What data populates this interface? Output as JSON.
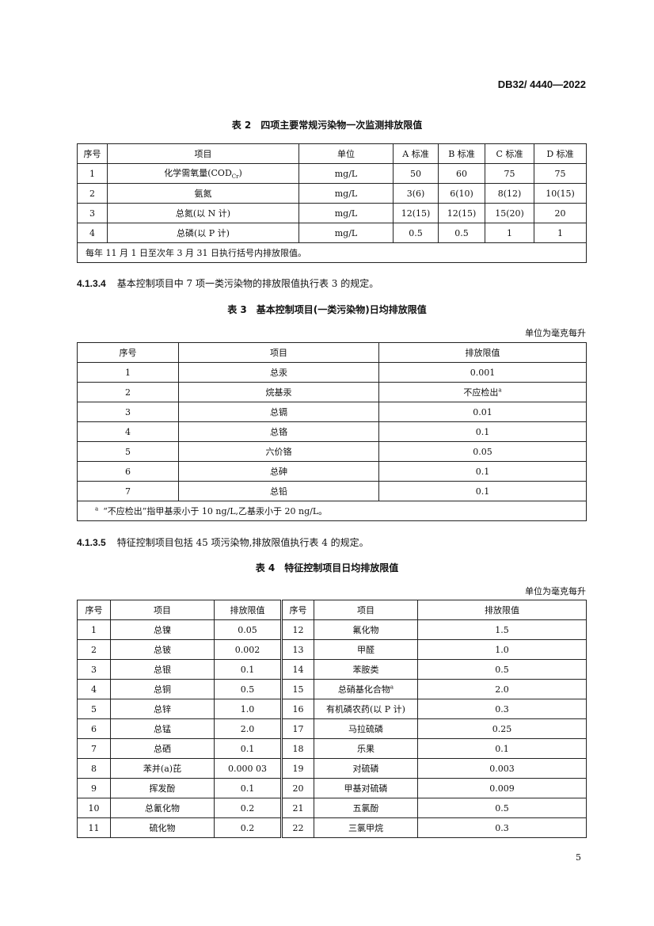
{
  "header": {
    "doc_number": "DB32/ 4440—2022"
  },
  "table2": {
    "title": "表 2　四项主要常规污染物一次监测排放限值",
    "headers": [
      "序号",
      "项目",
      "单位",
      "A 标准",
      "B 标准",
      "C 标准",
      "D 标准"
    ],
    "rows": [
      [
        "1",
        "化学需氧量(COD",
        "mg/L",
        "50",
        "60",
        "75",
        "75"
      ],
      [
        "2",
        "氨氮",
        "mg/L",
        "3(6)",
        "6(10)",
        "8(12)",
        "10(15)"
      ],
      [
        "3",
        "总氮(以 N 计)",
        "mg/L",
        "12(15)",
        "12(15)",
        "15(20)",
        "20"
      ],
      [
        "4",
        "总磷(以 P 计)",
        "mg/L",
        "0.5",
        "0.5",
        "1",
        "1"
      ]
    ],
    "cod_subscript": "Cr",
    "cod_close": ")",
    "note": "每年 11 月 1 日至次年 3 月 31 日执行括号内排放限值。"
  },
  "clause_4134": {
    "number": "4.1.3.4",
    "text": "基本控制项目中 7 项一类污染物的排放限值执行表 3 的规定。"
  },
  "table3": {
    "title": "表 3　基本控制项目(一类污染物)日均排放限值",
    "unit": "单位为毫克每升",
    "headers": [
      "序号",
      "项目",
      "排放限值"
    ],
    "rows": [
      [
        "1",
        "总汞",
        "0.001"
      ],
      [
        "2",
        "烷基汞",
        "不应检出"
      ],
      [
        "3",
        "总镉",
        "0.01"
      ],
      [
        "4",
        "总铬",
        "0.1"
      ],
      [
        "5",
        "六价铬",
        "0.05"
      ],
      [
        "6",
        "总砷",
        "0.1"
      ],
      [
        "7",
        "总铅",
        "0.1"
      ]
    ],
    "footnote_mark": "a",
    "footnote": "“不应检出”指甲基汞小于 10 ng/L,乙基汞小于 20 ng/L。"
  },
  "clause_4135": {
    "number": "4.1.3.5",
    "text": "特征控制项目包括 45 项污染物,排放限值执行表 4 的规定。"
  },
  "table4": {
    "title": "表 4　特征控制项目日均排放限值",
    "unit": "单位为毫克每升",
    "headers": [
      "序号",
      "项目",
      "排放限值",
      "序号",
      "项目",
      "排放限值"
    ],
    "rows": [
      [
        "1",
        "总镍",
        "0.05",
        "12",
        "氟化物",
        "1.5"
      ],
      [
        "2",
        "总铍",
        "0.002",
        "13",
        "甲醛",
        "1.0"
      ],
      [
        "3",
        "总银",
        "0.1",
        "14",
        "苯胺类",
        "0.5"
      ],
      [
        "4",
        "总铜",
        "0.5",
        "15",
        "总硝基化合物",
        "2.0"
      ],
      [
        "5",
        "总锌",
        "1.0",
        "16",
        "有机磷农药(以 P 计)",
        "0.3"
      ],
      [
        "6",
        "总锰",
        "2.0",
        "17",
        "马拉硫磷",
        "0.25"
      ],
      [
        "7",
        "总硒",
        "0.1",
        "18",
        "乐果",
        "0.1"
      ],
      [
        "8",
        "苯并(a)芘",
        "0.000 03",
        "19",
        "对硫磷",
        "0.003"
      ],
      [
        "9",
        "挥发酚",
        "0.1",
        "20",
        "甲基对硫磷",
        "0.009"
      ],
      [
        "10",
        "总氰化物",
        "0.2",
        "21",
        "五氯酚",
        "0.5"
      ],
      [
        "11",
        "硫化物",
        "0.2",
        "22",
        "三氯甲烷",
        "0.3"
      ]
    ],
    "footnote_mark": "a"
  },
  "page_number": "5"
}
